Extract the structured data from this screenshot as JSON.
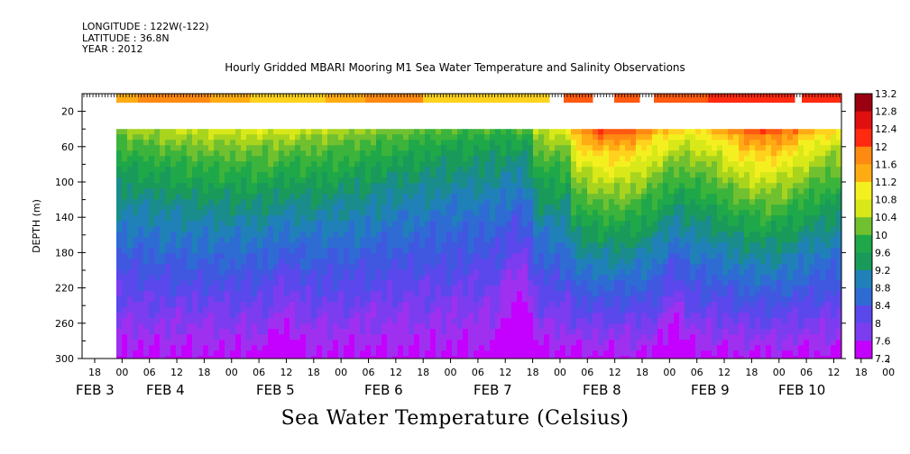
{
  "header": {
    "longitude": "LONGITUDE : 122W(-122)",
    "latitude": "LATITUDE : 36.8N",
    "year": "YEAR : 2012"
  },
  "bottom_title": "Sea Water Temperature (Celsius)",
  "chart_data": {
    "type": "heatmap",
    "title": "Hourly Gridded MBARI Mooring M1 Sea Water Temperature and Salinity Observations",
    "ylabel": "DEPTH (m)",
    "xlabel": "",
    "y_ticks": [
      20,
      60,
      100,
      140,
      180,
      220,
      260,
      300
    ],
    "ylim": [
      300,
      0
    ],
    "x_hour_ticks": [
      "18",
      "00",
      "06",
      "12",
      "18",
      "00",
      "06",
      "12",
      "18",
      "00",
      "06",
      "12",
      "18",
      "00",
      "06",
      "12",
      "18",
      "00",
      "06",
      "12",
      "18",
      "00",
      "06",
      "12",
      "18",
      "00",
      "06",
      "12",
      "18",
      "00",
      "06",
      "12"
    ],
    "x_date_labels": [
      {
        "day": "FEB",
        "num": "3"
      },
      {
        "day": "FEB",
        "num": "4"
      },
      {
        "day": "FEB",
        "num": "5"
      },
      {
        "day": "FEB",
        "num": "6"
      },
      {
        "day": "FEB",
        "num": "7"
      },
      {
        "day": "FEB",
        "num": "8"
      },
      {
        "day": "FEB",
        "num": "9"
      },
      {
        "day": "FEB",
        "num": "10"
      }
    ],
    "colorbar": {
      "labels": [
        "13.2",
        "12.8",
        "12.4",
        "12",
        "11.6",
        "11.2",
        "10.8",
        "10.4",
        "10",
        "9.6",
        "9.2",
        "8.8",
        "8.4",
        "8",
        "7.6",
        "7.2"
      ],
      "min": 7.2,
      "max": 13.2
    },
    "time_start": "FEB 3 00",
    "time_end": "FEB 10 12",
    "depth_profile_samples": [
      {
        "time": "FEB 3 00",
        "depth_m": [
          40,
          100,
          140,
          180,
          220,
          260,
          300
        ],
        "temperature_c": [
          10.2,
          9.4,
          9.0,
          8.7,
          8.3,
          7.9,
          7.6
        ]
      },
      {
        "time": "FEB 7 12",
        "depth_m": [
          40,
          100,
          140,
          180,
          220,
          260,
          300
        ],
        "temperature_c": [
          11.2,
          9.8,
          9.2,
          8.7,
          8.3,
          7.9,
          7.6
        ]
      },
      {
        "time": "FEB 8 12",
        "depth_m": [
          40,
          100,
          140,
          180,
          220,
          260,
          300
        ],
        "temperature_c": [
          12.0,
          11.0,
          9.8,
          9.0,
          8.5,
          8.0,
          7.7
        ]
      },
      {
        "time": "FEB 10 06",
        "depth_m": [
          40,
          100,
          140,
          180,
          220,
          260,
          300
        ],
        "temperature_c": [
          12.4,
          10.6,
          9.8,
          9.2,
          8.6,
          8.1,
          7.8
        ]
      }
    ],
    "surface_series": {
      "depth_m": 10,
      "temperature_range_c": [
        11.2,
        12.4
      ]
    }
  }
}
